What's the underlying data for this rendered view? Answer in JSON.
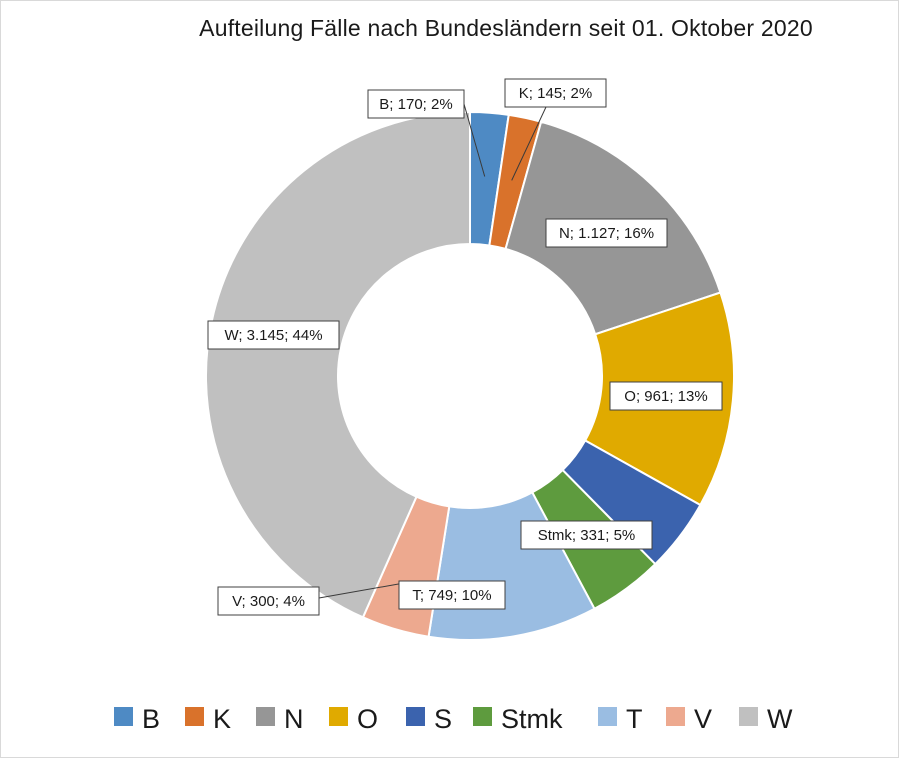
{
  "chart_data": {
    "type": "pie",
    "variant": "doughnut",
    "title": "Aufteilung Fälle nach Bundesländern seit 01. Oktober 2020",
    "legend_position": "bottom",
    "categories": [
      "B",
      "K",
      "N",
      "O",
      "S",
      "Stmk",
      "T",
      "V",
      "W"
    ],
    "series": [
      {
        "values": [
          170,
          145,
          1127,
          961,
          326,
          331,
          749,
          300,
          3145
        ],
        "colors": [
          "#4E8AC4",
          "#D9722B",
          "#969696",
          "#E0AA00",
          "#3B63AE",
          "#5E9B3E",
          "#9ABDE2",
          "#EDA98F",
          "#C0C0C0"
        ]
      }
    ],
    "data_labels": [
      {
        "category": "B",
        "text": "B; 170; 2%"
      },
      {
        "category": "K",
        "text": "K; 145; 2%"
      },
      {
        "category": "N",
        "text": "N; 1.127; 16%"
      },
      {
        "category": "O",
        "text": "O; 961; 13%"
      },
      {
        "category": "S",
        "text": ""
      },
      {
        "category": "Stmk",
        "text": "Stmk; 331; 5%"
      },
      {
        "category": "T",
        "text": "T; 749; 10%"
      },
      {
        "category": "V",
        "text": "V; 300; 4%"
      },
      {
        "category": "W",
        "text": "W; 3.145; 44%"
      }
    ]
  }
}
